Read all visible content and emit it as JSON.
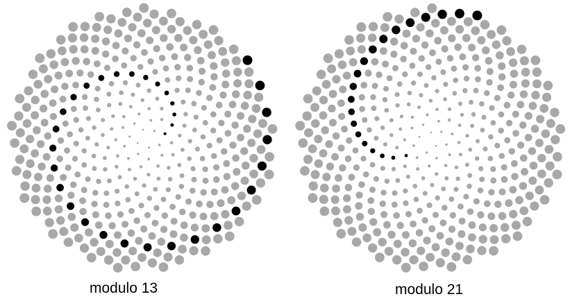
{
  "panels": [
    {
      "caption": "modulo 13",
      "modulus": 13,
      "highlight_residue": 0,
      "highlight_color": "#000000",
      "point_color": "#a8a8a8"
    },
    {
      "caption": "modulo 21",
      "modulus": 21,
      "highlight_residue": 0,
      "highlight_color": "#000000",
      "point_color": "#a8a8a8"
    }
  ]
}
